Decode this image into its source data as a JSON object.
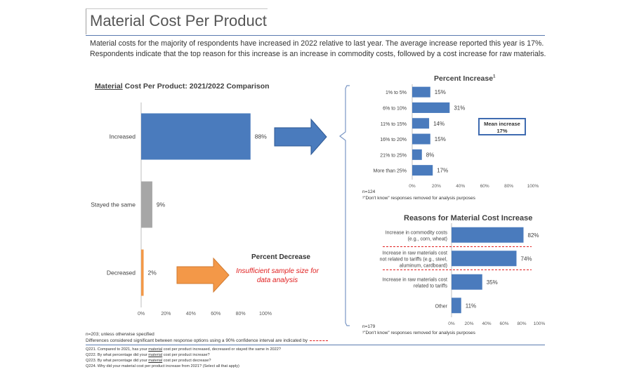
{
  "header": {
    "title": "Material Cost Per Product",
    "intro": "Material costs for the majority of respondents have increased in 2022 relative to last year.  The average increase reported this year is 17%. Respondents indicate that the top reason for this increase is an increase in commodity costs, followed by a cost increase for raw materials."
  },
  "chart_data": [
    {
      "type": "bar",
      "orientation": "horizontal",
      "title_underlined": "Material",
      "title_rest": " Cost Per Product: 2021/2022 Comparison",
      "categories": [
        "Increased",
        "Stayed the same",
        "Decreased"
      ],
      "values": [
        88,
        9,
        2
      ],
      "value_labels": [
        "88%",
        "9%",
        "2%"
      ],
      "colors": [
        "#4a7bbd",
        "#a6a6a6",
        "#f39848"
      ],
      "xlim": [
        0,
        100
      ],
      "xticks": [
        "0%",
        "20%",
        "40%",
        "60%",
        "80%",
        "100%"
      ],
      "grid": false
    },
    {
      "type": "bar",
      "orientation": "horizontal",
      "title": "Percent Increase",
      "title_superscript": "1",
      "categories": [
        "1% to 5%",
        "6% to 10%",
        "11% to 15%",
        "16% to 20%",
        "21% to 25%",
        "More than 25%"
      ],
      "values": [
        15,
        31,
        14,
        15,
        8,
        17
      ],
      "value_labels": [
        "15%",
        "31%",
        "14%",
        "15%",
        "8%",
        "17%"
      ],
      "color": "#4a7bbd",
      "xlim": [
        0,
        100
      ],
      "xticks": [
        "0%",
        "20%",
        "40%",
        "60%",
        "80%",
        "100%"
      ],
      "grid": false,
      "annotation": {
        "line1": "Mean increase",
        "line2": "17%"
      },
      "n_label": "n=124",
      "footnote": "¹\"Don't know\" responses removed for analysis purposes"
    },
    {
      "type": "bar",
      "orientation": "horizontal",
      "title": "Reasons for Material Cost Increase",
      "categories": [
        [
          "Increase in commodity costs",
          "(e.g., corn, wheat)"
        ],
        [
          "Increase in raw materials cost",
          "not related to tariffs (e.g., steel,",
          "aluminum, cardboard)"
        ],
        [
          "Increase in raw materials cost",
          "related to tariffs"
        ],
        [
          "Other"
        ]
      ],
      "values": [
        82,
        74,
        35,
        11
      ],
      "value_labels": [
        "82%",
        "74%",
        "35%",
        "11%"
      ],
      "color": "#4a7bbd",
      "xlim": [
        0,
        100
      ],
      "xticks": [
        "0%",
        "20%",
        "40%",
        "60%",
        "80%",
        "100%"
      ],
      "grid": false,
      "n_label": "n=179",
      "footnote": "¹\"Don't know\" responses removed for analysis purposes"
    }
  ],
  "decrease": {
    "title": "Percent Decrease",
    "message": "Insufficient sample size for data analysis"
  },
  "notes": {
    "sample": "n=203; unless otherwise specified",
    "significance": "Differences considered significant between response options using a 90% confidence interval are indicated by"
  },
  "footer": {
    "q1_pre": "Q221. Compared to 2021, has your ",
    "q1_u": "material",
    "q1_post": " cost per product increased, decreased or stayed the same in 2022?",
    "q2_pre": "Q222. By what percentage did your ",
    "q2_u": "material",
    "q2_post": " cost per product increase?",
    "q3_pre": "Q223. By what percentage did your ",
    "q3_u": "material",
    "q3_post": " cost per product decrease?",
    "q4_pre": "Q224. Why did your material cost per product increase from 2021? (Select all that apply)"
  },
  "colors": {
    "bar_blue": "#4a7bbd",
    "arrow_blue": "#4a7bbd",
    "arrow_orange": "#f39848",
    "significance_dash": "#e02020",
    "accent_rule": "#5b7bb0"
  }
}
